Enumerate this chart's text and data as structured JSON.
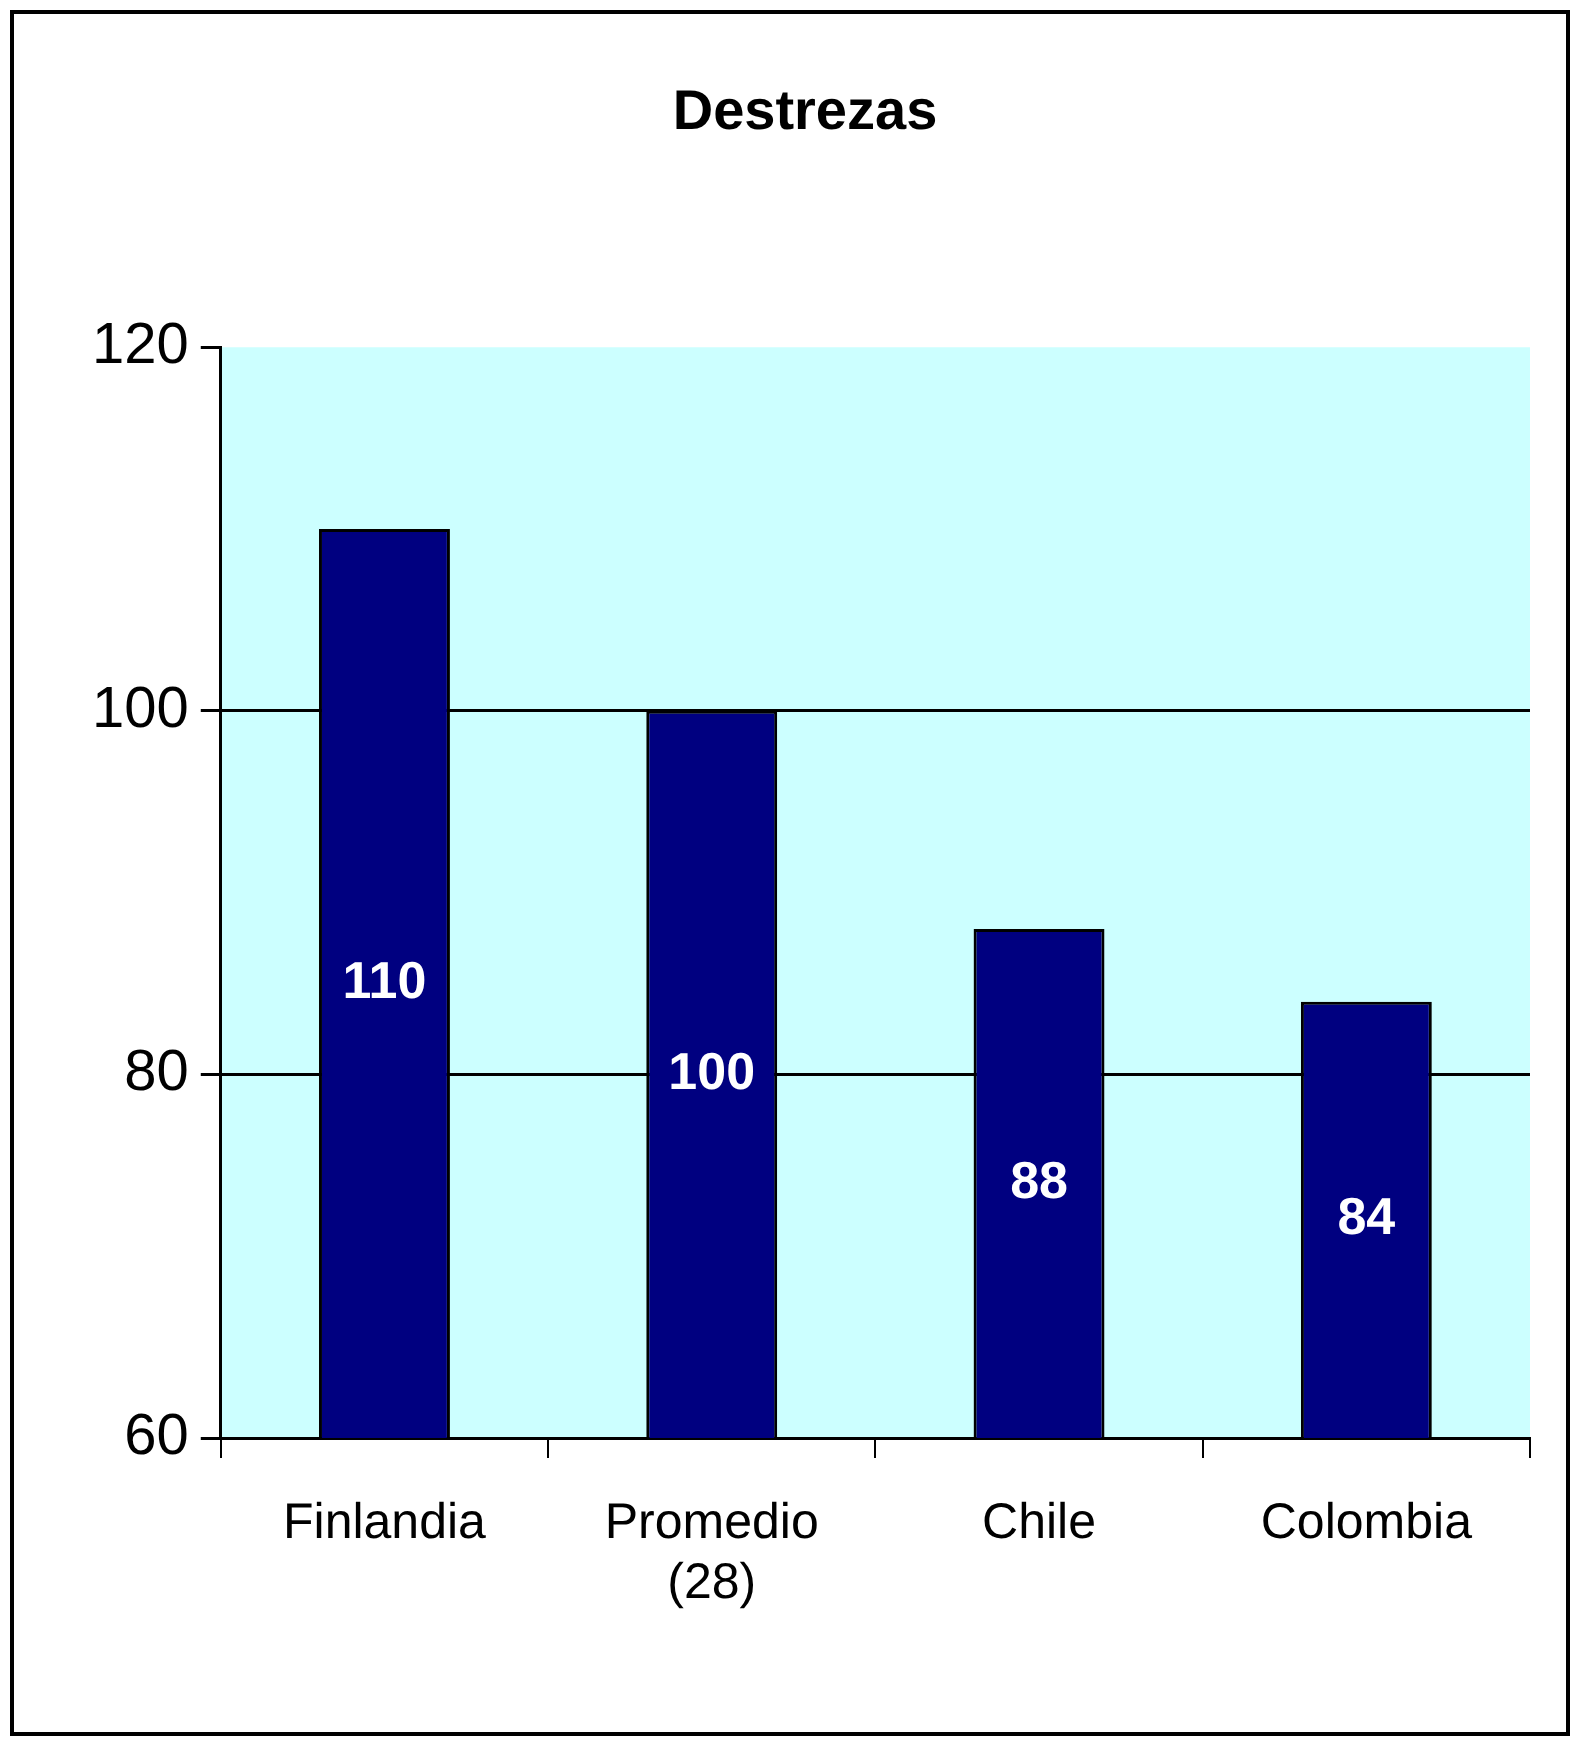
{
  "chart_data": {
    "type": "bar",
    "title": "Destrezas",
    "categories": [
      "Finlandia",
      "Promedio (28)",
      "Chile",
      "Colombia"
    ],
    "values": [
      110,
      100,
      88,
      84
    ],
    "color": "#000080",
    "ylim": [
      60,
      120
    ],
    "yticks": [
      60,
      80,
      100,
      120
    ],
    "grid": "y",
    "data_labels": true
  }
}
